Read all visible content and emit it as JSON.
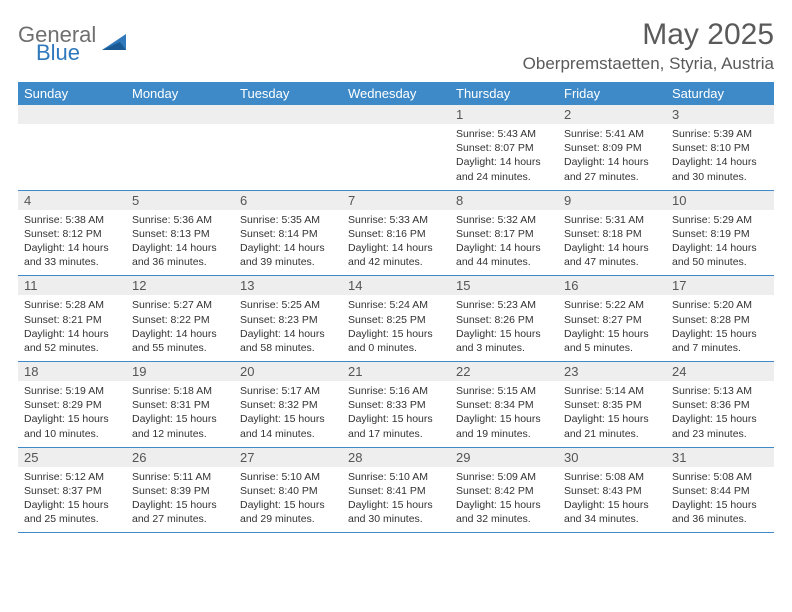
{
  "logo": {
    "general": "General",
    "blue": "Blue"
  },
  "title": "May 2025",
  "location": "Oberpremstaetten, Styria, Austria",
  "colors": {
    "header_bg": "#3e8ac8",
    "header_text": "#ffffff",
    "daynum_bg": "#eeeeee",
    "text": "#333333",
    "rule": "#3e8ac8",
    "logo_gray": "#6f6f6f",
    "logo_blue": "#2f78bb"
  },
  "day_headers": [
    "Sunday",
    "Monday",
    "Tuesday",
    "Wednesday",
    "Thursday",
    "Friday",
    "Saturday"
  ],
  "weeks": [
    [
      null,
      null,
      null,
      null,
      {
        "n": "1",
        "sr": "5:43 AM",
        "ss": "8:07 PM",
        "dl": "14 hours and 24 minutes."
      },
      {
        "n": "2",
        "sr": "5:41 AM",
        "ss": "8:09 PM",
        "dl": "14 hours and 27 minutes."
      },
      {
        "n": "3",
        "sr": "5:39 AM",
        "ss": "8:10 PM",
        "dl": "14 hours and 30 minutes."
      }
    ],
    [
      {
        "n": "4",
        "sr": "5:38 AM",
        "ss": "8:12 PM",
        "dl": "14 hours and 33 minutes."
      },
      {
        "n": "5",
        "sr": "5:36 AM",
        "ss": "8:13 PM",
        "dl": "14 hours and 36 minutes."
      },
      {
        "n": "6",
        "sr": "5:35 AM",
        "ss": "8:14 PM",
        "dl": "14 hours and 39 minutes."
      },
      {
        "n": "7",
        "sr": "5:33 AM",
        "ss": "8:16 PM",
        "dl": "14 hours and 42 minutes."
      },
      {
        "n": "8",
        "sr": "5:32 AM",
        "ss": "8:17 PM",
        "dl": "14 hours and 44 minutes."
      },
      {
        "n": "9",
        "sr": "5:31 AM",
        "ss": "8:18 PM",
        "dl": "14 hours and 47 minutes."
      },
      {
        "n": "10",
        "sr": "5:29 AM",
        "ss": "8:19 PM",
        "dl": "14 hours and 50 minutes."
      }
    ],
    [
      {
        "n": "11",
        "sr": "5:28 AM",
        "ss": "8:21 PM",
        "dl": "14 hours and 52 minutes."
      },
      {
        "n": "12",
        "sr": "5:27 AM",
        "ss": "8:22 PM",
        "dl": "14 hours and 55 minutes."
      },
      {
        "n": "13",
        "sr": "5:25 AM",
        "ss": "8:23 PM",
        "dl": "14 hours and 58 minutes."
      },
      {
        "n": "14",
        "sr": "5:24 AM",
        "ss": "8:25 PM",
        "dl": "15 hours and 0 minutes."
      },
      {
        "n": "15",
        "sr": "5:23 AM",
        "ss": "8:26 PM",
        "dl": "15 hours and 3 minutes."
      },
      {
        "n": "16",
        "sr": "5:22 AM",
        "ss": "8:27 PM",
        "dl": "15 hours and 5 minutes."
      },
      {
        "n": "17",
        "sr": "5:20 AM",
        "ss": "8:28 PM",
        "dl": "15 hours and 7 minutes."
      }
    ],
    [
      {
        "n": "18",
        "sr": "5:19 AM",
        "ss": "8:29 PM",
        "dl": "15 hours and 10 minutes."
      },
      {
        "n": "19",
        "sr": "5:18 AM",
        "ss": "8:31 PM",
        "dl": "15 hours and 12 minutes."
      },
      {
        "n": "20",
        "sr": "5:17 AM",
        "ss": "8:32 PM",
        "dl": "15 hours and 14 minutes."
      },
      {
        "n": "21",
        "sr": "5:16 AM",
        "ss": "8:33 PM",
        "dl": "15 hours and 17 minutes."
      },
      {
        "n": "22",
        "sr": "5:15 AM",
        "ss": "8:34 PM",
        "dl": "15 hours and 19 minutes."
      },
      {
        "n": "23",
        "sr": "5:14 AM",
        "ss": "8:35 PM",
        "dl": "15 hours and 21 minutes."
      },
      {
        "n": "24",
        "sr": "5:13 AM",
        "ss": "8:36 PM",
        "dl": "15 hours and 23 minutes."
      }
    ],
    [
      {
        "n": "25",
        "sr": "5:12 AM",
        "ss": "8:37 PM",
        "dl": "15 hours and 25 minutes."
      },
      {
        "n": "26",
        "sr": "5:11 AM",
        "ss": "8:39 PM",
        "dl": "15 hours and 27 minutes."
      },
      {
        "n": "27",
        "sr": "5:10 AM",
        "ss": "8:40 PM",
        "dl": "15 hours and 29 minutes."
      },
      {
        "n": "28",
        "sr": "5:10 AM",
        "ss": "8:41 PM",
        "dl": "15 hours and 30 minutes."
      },
      {
        "n": "29",
        "sr": "5:09 AM",
        "ss": "8:42 PM",
        "dl": "15 hours and 32 minutes."
      },
      {
        "n": "30",
        "sr": "5:08 AM",
        "ss": "8:43 PM",
        "dl": "15 hours and 34 minutes."
      },
      {
        "n": "31",
        "sr": "5:08 AM",
        "ss": "8:44 PM",
        "dl": "15 hours and 36 minutes."
      }
    ]
  ],
  "labels": {
    "sunrise": "Sunrise: ",
    "sunset": "Sunset: ",
    "daylight": "Daylight: "
  }
}
